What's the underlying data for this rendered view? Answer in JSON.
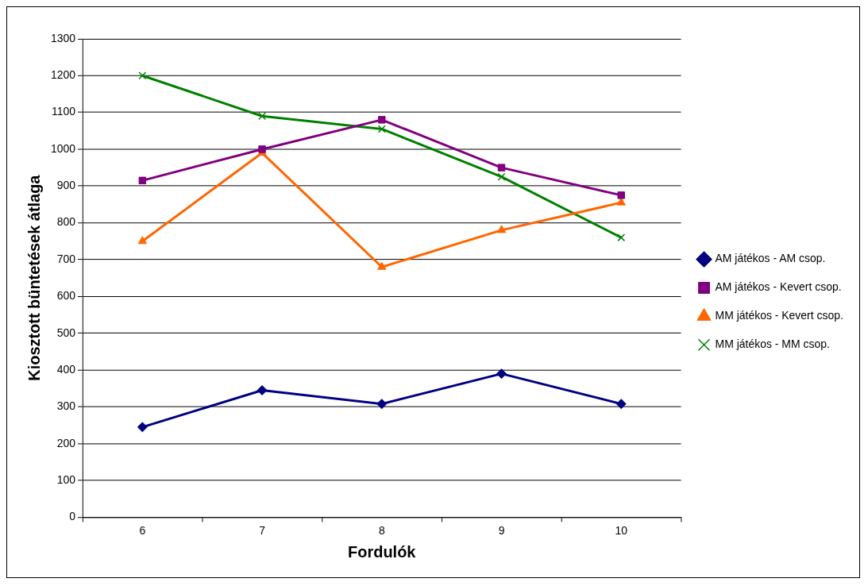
{
  "chart_data": {
    "type": "line",
    "xlabel": "Fordulók",
    "ylabel": "Kiosztott büntetések átlaga",
    "categories": [
      "6",
      "7",
      "8",
      "9",
      "10"
    ],
    "series": [
      {
        "name": "AM játékos - AM csop.",
        "color": "#000080",
        "marker": "diamond",
        "values": [
          245,
          345,
          308,
          390,
          308
        ]
      },
      {
        "name": "AM játékos - Kevert csop.",
        "color": "#800080",
        "marker": "square",
        "values": [
          915,
          1000,
          1080,
          950,
          875
        ]
      },
      {
        "name": "MM játékos - Kevert csop.",
        "color": "#ff6600",
        "marker": "triangle",
        "values": [
          750,
          990,
          680,
          780,
          855
        ]
      },
      {
        "name": "MM játékos - MM csop.",
        "color": "#008000",
        "marker": "cross",
        "values": [
          1200,
          1090,
          1055,
          925,
          760
        ]
      }
    ],
    "ylim": [
      0,
      1300
    ],
    "yticks": [
      0,
      100,
      200,
      300,
      400,
      500,
      600,
      700,
      800,
      900,
      1000,
      1100,
      1200,
      1300
    ],
    "grid": "y",
    "legend": "right",
    "line_style": "solid"
  }
}
